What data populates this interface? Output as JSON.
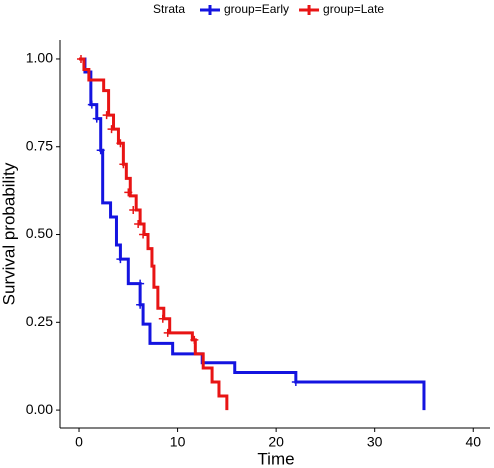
{
  "chart_data": {
    "type": "step",
    "legend_title": "Strata",
    "xlabel": "Time",
    "ylabel": "Survival probability",
    "xlim": [
      -1.93,
      41.7
    ],
    "ylim": [
      -0.051,
      1.054
    ],
    "xticks": [
      0,
      10,
      20,
      30,
      40
    ],
    "yticks": [
      {
        "value": 0,
        "label": "0.00"
      },
      0.25,
      {
        "value": 0.5,
        "label": "0.50"
      },
      0.75,
      {
        "value": 1,
        "label": "1.00"
      }
    ],
    "series": [
      {
        "name": "group=Early",
        "color": "#1414e0",
        "x": [
          0,
          0.6,
          1.2,
          1.8,
          2.2,
          2.4,
          3.2,
          3.8,
          4.2,
          5.0,
          6.2,
          6.5,
          7.2,
          9.5,
          12.5,
          15.8,
          22,
          35,
          35
        ],
        "values": [
          1.0,
          0.963,
          0.87,
          0.83,
          0.74,
          0.59,
          0.55,
          0.47,
          0.43,
          0.36,
          0.3,
          0.245,
          0.19,
          0.16,
          0.135,
          0.107,
          0.08,
          0.08,
          0.0
        ],
        "censor_x": [
          1.3,
          1.8,
          2.2,
          4.2,
          6.2,
          6.2,
          22
        ],
        "censor_values": [
          0.87,
          0.83,
          0.74,
          0.43,
          0.36,
          0.3,
          0.08
        ]
      },
      {
        "name": "group=Late",
        "color": "#e81414",
        "x": [
          0,
          0.5,
          1.0,
          2.5,
          3.0,
          3.5,
          4.0,
          4.5,
          4.8,
          5.2,
          5.8,
          6.2,
          6.6,
          7.0,
          7.4,
          7.6,
          8.0,
          8.6,
          9.2,
          11.5,
          11.8,
          12.6,
          13.5,
          14.2,
          15,
          15
        ],
        "values": [
          1.0,
          0.97,
          0.94,
          0.91,
          0.84,
          0.8,
          0.76,
          0.7,
          0.66,
          0.61,
          0.57,
          0.53,
          0.5,
          0.46,
          0.41,
          0.35,
          0.29,
          0.26,
          0.22,
          0.2,
          0.16,
          0.12,
          0.08,
          0.04,
          0.01,
          0.0
        ],
        "censor_x": [
          0.2,
          2.8,
          3.3,
          4.2,
          4.5,
          5.0,
          5.5,
          6.0,
          6.5,
          8.5,
          9.0,
          11.7
        ],
        "censor_values": [
          1.0,
          0.84,
          0.8,
          0.76,
          0.7,
          0.62,
          0.57,
          0.53,
          0.5,
          0.26,
          0.22,
          0.2
        ]
      }
    ]
  }
}
